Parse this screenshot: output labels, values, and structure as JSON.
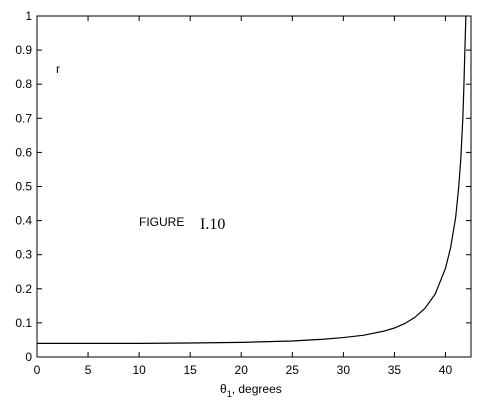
{
  "chart_data": {
    "type": "line",
    "xlabel_symbol": "θ",
    "xlabel_subscript": "1",
    "xlabel_rest": ", degrees",
    "xlim": [
      0,
      42.5
    ],
    "ylim": [
      0,
      1
    ],
    "x_ticks": [
      "0",
      "5",
      "10",
      "15",
      "20",
      "25",
      "30",
      "35",
      "40"
    ],
    "y_ticks": [
      "0",
      "0.1",
      "0.2",
      "0.3",
      "0.4",
      "0.5",
      "0.6",
      "0.7",
      "0.8",
      "0.9",
      "1"
    ],
    "grid": false,
    "annotations": {
      "r_label": "r",
      "figure_word": "FIGURE",
      "figure_number": "I.10"
    },
    "series": [
      {
        "x": [
          0,
          5,
          10,
          15,
          20,
          25,
          28,
          30,
          32,
          34,
          35,
          36,
          37,
          38,
          39,
          40,
          40.5,
          41,
          41.3,
          41.5,
          41.7,
          41.8,
          41.9,
          42.0
        ],
        "y": [
          0.04,
          0.04,
          0.04,
          0.041,
          0.043,
          0.047,
          0.052,
          0.057,
          0.064,
          0.076,
          0.085,
          0.098,
          0.116,
          0.143,
          0.185,
          0.26,
          0.32,
          0.41,
          0.5,
          0.58,
          0.7,
          0.79,
          0.9,
          1.0
        ]
      }
    ],
    "colors": {
      "line": "#000000",
      "axis": "#000000"
    }
  }
}
